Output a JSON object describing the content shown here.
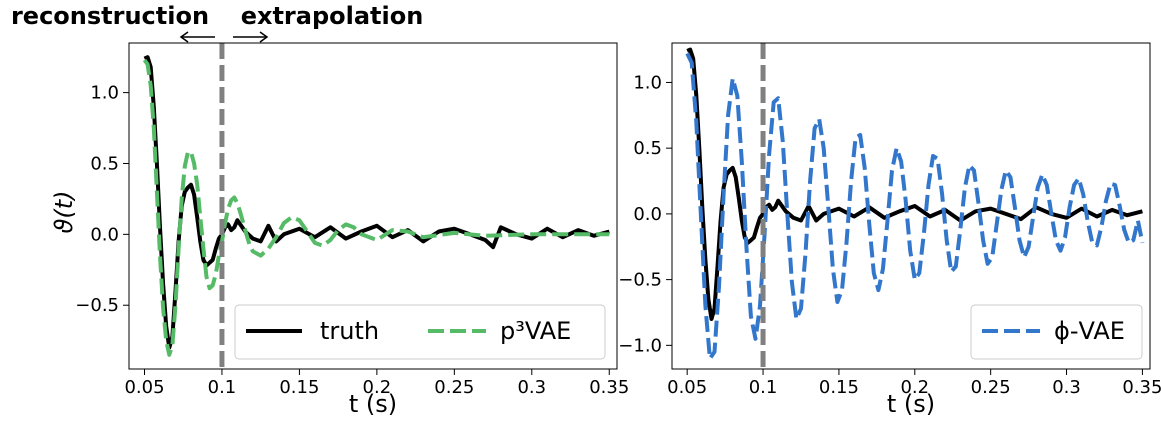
{
  "annotations": {
    "reconstruction": "reconstruction",
    "extrapolation": "extrapolation"
  },
  "chart_data": [
    {
      "type": "line",
      "xlabel": "t (s)",
      "ylabel": "ϑ(t)",
      "xlim": [
        0.04,
        0.355
      ],
      "ylim": [
        -0.95,
        1.35
      ],
      "xticks": [
        0.05,
        0.1,
        0.15,
        0.2,
        0.25,
        0.3,
        0.35
      ],
      "xtick_labels": [
        "0.05",
        "0.1",
        "0.15",
        "0.2",
        "0.25",
        "0.3",
        "0.35"
      ],
      "yticks": [
        -0.5,
        0.0,
        0.5,
        1.0
      ],
      "ytick_labels": [
        "−0.5",
        "0.0",
        "0.5",
        "1.0"
      ],
      "vline": 0.1,
      "grid": false,
      "legend_location": "lower-right",
      "legend_columns": 2,
      "series": [
        {
          "name": "truth",
          "color": "#000000",
          "style": "solid",
          "x": [
            0.05,
            0.052,
            0.054,
            0.056,
            0.058,
            0.06,
            0.062,
            0.064,
            0.066,
            0.068,
            0.07,
            0.072,
            0.074,
            0.076,
            0.078,
            0.08,
            0.082,
            0.084,
            0.086,
            0.088,
            0.09,
            0.092,
            0.094,
            0.096,
            0.098,
            0.1,
            0.102,
            0.104,
            0.106,
            0.108,
            0.11,
            0.115,
            0.12,
            0.125,
            0.13,
            0.135,
            0.14,
            0.15,
            0.16,
            0.17,
            0.18,
            0.19,
            0.2,
            0.21,
            0.22,
            0.23,
            0.24,
            0.25,
            0.26,
            0.27,
            0.275,
            0.28,
            0.29,
            0.3,
            0.31,
            0.32,
            0.33,
            0.34,
            0.35
          ],
          "y": [
            1.24,
            1.25,
            1.18,
            0.9,
            0.5,
            0.05,
            -0.35,
            -0.65,
            -0.8,
            -0.72,
            -0.4,
            -0.05,
            0.2,
            0.3,
            0.33,
            0.35,
            0.28,
            0.12,
            -0.05,
            -0.18,
            -0.22,
            -0.2,
            -0.18,
            -0.1,
            -0.03,
            0.0,
            0.05,
            0.07,
            0.03,
            0.05,
            0.1,
            0.02,
            -0.03,
            -0.05,
            0.06,
            -0.05,
            0.0,
            0.04,
            -0.02,
            0.05,
            -0.03,
            0.02,
            0.06,
            -0.02,
            0.03,
            -0.05,
            0.02,
            0.04,
            0.0,
            -0.04,
            -0.09,
            0.05,
            0.0,
            -0.03,
            0.04,
            -0.02,
            0.03,
            -0.01,
            0.02
          ]
        },
        {
          "name": "p³VAE",
          "color": "#55bb66",
          "style": "dashed",
          "x": [
            0.05,
            0.052,
            0.054,
            0.056,
            0.058,
            0.06,
            0.062,
            0.064,
            0.066,
            0.068,
            0.07,
            0.072,
            0.074,
            0.076,
            0.078,
            0.08,
            0.082,
            0.084,
            0.086,
            0.088,
            0.09,
            0.092,
            0.094,
            0.096,
            0.098,
            0.1,
            0.102,
            0.104,
            0.106,
            0.108,
            0.11,
            0.112,
            0.115,
            0.118,
            0.12,
            0.125,
            0.13,
            0.135,
            0.14,
            0.145,
            0.15,
            0.155,
            0.16,
            0.165,
            0.17,
            0.175,
            0.18,
            0.185,
            0.19,
            0.2,
            0.21,
            0.22,
            0.23,
            0.25,
            0.27,
            0.3,
            0.33,
            0.35
          ],
          "y": [
            1.23,
            1.2,
            1.05,
            0.75,
            0.3,
            -0.15,
            -0.52,
            -0.75,
            -0.85,
            -0.78,
            -0.5,
            -0.1,
            0.25,
            0.48,
            0.58,
            0.58,
            0.5,
            0.35,
            0.12,
            -0.1,
            -0.3,
            -0.38,
            -0.36,
            -0.28,
            -0.15,
            -0.05,
            0.08,
            0.18,
            0.24,
            0.26,
            0.22,
            0.15,
            0.03,
            -0.08,
            -0.12,
            -0.15,
            -0.1,
            -0.02,
            0.08,
            0.12,
            0.1,
            0.02,
            -0.06,
            -0.08,
            -0.04,
            0.03,
            0.07,
            0.05,
            0.0,
            -0.04,
            0.03,
            0.02,
            -0.02,
            0.01,
            -0.01,
            0.0,
            0.0,
            0.0
          ]
        }
      ]
    },
    {
      "type": "line",
      "xlabel": "t (s)",
      "ylabel": "",
      "xlim": [
        0.04,
        0.355
      ],
      "ylim": [
        -1.18,
        1.3
      ],
      "xticks": [
        0.05,
        0.1,
        0.15,
        0.2,
        0.25,
        0.3,
        0.35
      ],
      "xtick_labels": [
        "0.05",
        "0.1",
        "0.15",
        "0.2",
        "0.25",
        "0.3",
        "0.35"
      ],
      "yticks": [
        -1.0,
        -0.5,
        0.0,
        0.5,
        1.0
      ],
      "ytick_labels": [
        "−1.0",
        "−0.5",
        "0.0",
        "0.5",
        "1.0"
      ],
      "vline": 0.1,
      "grid": false,
      "legend_location": "lower-right",
      "legend_columns": 1,
      "series": [
        {
          "name": "truth",
          "color": "#000000",
          "style": "solid",
          "show_in_legend": false,
          "x": [
            0.05,
            0.052,
            0.054,
            0.056,
            0.058,
            0.06,
            0.062,
            0.064,
            0.066,
            0.068,
            0.07,
            0.072,
            0.074,
            0.076,
            0.078,
            0.08,
            0.082,
            0.084,
            0.086,
            0.088,
            0.09,
            0.092,
            0.094,
            0.096,
            0.098,
            0.1,
            0.102,
            0.104,
            0.106,
            0.108,
            0.11,
            0.115,
            0.12,
            0.125,
            0.13,
            0.135,
            0.14,
            0.15,
            0.16,
            0.17,
            0.18,
            0.19,
            0.2,
            0.21,
            0.22,
            0.23,
            0.24,
            0.25,
            0.26,
            0.27,
            0.28,
            0.29,
            0.3,
            0.31,
            0.32,
            0.33,
            0.34,
            0.35
          ],
          "y": [
            1.24,
            1.25,
            1.18,
            0.9,
            0.5,
            0.05,
            -0.35,
            -0.65,
            -0.8,
            -0.72,
            -0.4,
            -0.05,
            0.2,
            0.3,
            0.33,
            0.35,
            0.28,
            0.12,
            -0.05,
            -0.18,
            -0.22,
            -0.2,
            -0.18,
            -0.1,
            -0.03,
            0.0,
            0.05,
            0.07,
            0.03,
            0.05,
            0.1,
            0.02,
            -0.03,
            -0.05,
            0.06,
            -0.05,
            0.0,
            0.04,
            -0.02,
            0.05,
            -0.03,
            0.02,
            0.06,
            -0.02,
            0.03,
            -0.05,
            0.02,
            0.04,
            0.0,
            -0.04,
            0.05,
            0.0,
            -0.03,
            0.04,
            -0.02,
            0.03,
            -0.01,
            0.02
          ]
        },
        {
          "name": "ϕ-VAE",
          "color": "#3377cc",
          "style": "dashed",
          "show_in_legend": true,
          "x": [
            0.05,
            0.053,
            0.056,
            0.059,
            0.062,
            0.065,
            0.068,
            0.071,
            0.074,
            0.077,
            0.08,
            0.083,
            0.086,
            0.089,
            0.092,
            0.095,
            0.098,
            0.101,
            0.104,
            0.107,
            0.11,
            0.113,
            0.116,
            0.119,
            0.122,
            0.125,
            0.128,
            0.131,
            0.134,
            0.137,
            0.14,
            0.143,
            0.146,
            0.149,
            0.152,
            0.155,
            0.158,
            0.161,
            0.164,
            0.167,
            0.17,
            0.173,
            0.176,
            0.179,
            0.182,
            0.185,
            0.188,
            0.191,
            0.194,
            0.197,
            0.2,
            0.203,
            0.206,
            0.209,
            0.212,
            0.215,
            0.218,
            0.221,
            0.224,
            0.227,
            0.23,
            0.233,
            0.236,
            0.239,
            0.242,
            0.245,
            0.248,
            0.251,
            0.254,
            0.257,
            0.26,
            0.263,
            0.266,
            0.269,
            0.272,
            0.275,
            0.278,
            0.281,
            0.284,
            0.287,
            0.29,
            0.293,
            0.296,
            0.299,
            0.302,
            0.305,
            0.308,
            0.311,
            0.314,
            0.317,
            0.32,
            0.323,
            0.326,
            0.329,
            0.332,
            0.335,
            0.338,
            0.341,
            0.344,
            0.347,
            0.35
          ],
          "y": [
            1.22,
            1.15,
            0.7,
            0.0,
            -0.7,
            -1.1,
            -1.05,
            -0.55,
            0.15,
            0.75,
            1.03,
            0.9,
            0.4,
            -0.25,
            -0.78,
            -0.95,
            -0.7,
            -0.15,
            0.45,
            0.85,
            0.88,
            0.55,
            0.0,
            -0.52,
            -0.8,
            -0.72,
            -0.3,
            0.25,
            0.65,
            0.72,
            0.5,
            0.05,
            -0.42,
            -0.67,
            -0.58,
            -0.22,
            0.25,
            0.58,
            0.6,
            0.35,
            -0.08,
            -0.45,
            -0.58,
            -0.42,
            -0.05,
            0.33,
            0.5,
            0.4,
            0.1,
            -0.28,
            -0.5,
            -0.45,
            -0.15,
            0.22,
            0.44,
            0.42,
            0.15,
            -0.2,
            -0.44,
            -0.4,
            -0.12,
            0.2,
            0.37,
            0.33,
            0.08,
            -0.2,
            -0.38,
            -0.33,
            -0.08,
            0.18,
            0.33,
            0.28,
            0.05,
            -0.2,
            -0.33,
            -0.25,
            -0.02,
            0.2,
            0.3,
            0.22,
            0.0,
            -0.2,
            -0.28,
            -0.18,
            0.05,
            0.22,
            0.27,
            0.15,
            -0.06,
            -0.22,
            -0.24,
            -0.1,
            0.1,
            0.23,
            0.22,
            0.06,
            -0.12,
            -0.22,
            -0.2,
            -0.05,
            -0.22
          ]
        }
      ]
    }
  ]
}
